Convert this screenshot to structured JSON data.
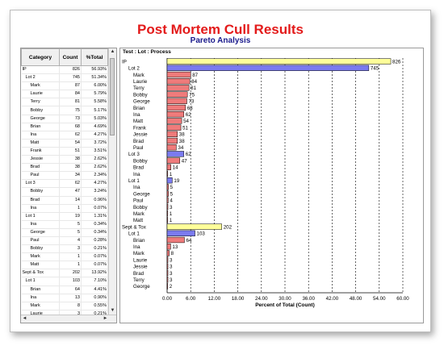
{
  "title": "Post Mortem Cull Results",
  "subtitle": "Pareto Analysis",
  "chart_header": "Test : Lot : Process",
  "table": {
    "headers": [
      "Category",
      "Count",
      "%Total"
    ],
    "rows": [
      {
        "category": "IP",
        "level": 0,
        "count": "826",
        "pct": "56.93%"
      },
      {
        "category": "Lot 2",
        "level": 1,
        "count": "745",
        "pct": "51.34%"
      },
      {
        "category": "Mark",
        "level": 2,
        "count": "87",
        "pct": "6.00%"
      },
      {
        "category": "Laurie",
        "level": 2,
        "count": "84",
        "pct": "5.79%"
      },
      {
        "category": "Terry",
        "level": 2,
        "count": "81",
        "pct": "5.58%"
      },
      {
        "category": "Bobby",
        "level": 2,
        "count": "75",
        "pct": "5.17%"
      },
      {
        "category": "George",
        "level": 2,
        "count": "73",
        "pct": "5.03%"
      },
      {
        "category": "Brian",
        "level": 2,
        "count": "68",
        "pct": "4.69%"
      },
      {
        "category": "Ina",
        "level": 2,
        "count": "62",
        "pct": "4.27%"
      },
      {
        "category": "Matt",
        "level": 2,
        "count": "54",
        "pct": "3.72%"
      },
      {
        "category": "Frank",
        "level": 2,
        "count": "51",
        "pct": "3.51%"
      },
      {
        "category": "Jessie",
        "level": 2,
        "count": "38",
        "pct": "2.62%"
      },
      {
        "category": "Brad",
        "level": 2,
        "count": "38",
        "pct": "2.62%"
      },
      {
        "category": "Paul",
        "level": 2,
        "count": "34",
        "pct": "2.34%"
      },
      {
        "category": "Lot 3",
        "level": 1,
        "count": "62",
        "pct": "4.27%"
      },
      {
        "category": "Bobby",
        "level": 2,
        "count": "47",
        "pct": "3.24%"
      },
      {
        "category": "Brad",
        "level": 2,
        "count": "14",
        "pct": "0.96%"
      },
      {
        "category": "Ina",
        "level": 2,
        "count": "1",
        "pct": "0.07%"
      },
      {
        "category": "Lot 1",
        "level": 1,
        "count": "19",
        "pct": "1.31%"
      },
      {
        "category": "Ina",
        "level": 2,
        "count": "5",
        "pct": "0.34%"
      },
      {
        "category": "George",
        "level": 2,
        "count": "5",
        "pct": "0.34%"
      },
      {
        "category": "Paul",
        "level": 2,
        "count": "4",
        "pct": "0.28%"
      },
      {
        "category": "Bobby",
        "level": 2,
        "count": "3",
        "pct": "0.21%"
      },
      {
        "category": "Mark",
        "level": 2,
        "count": "1",
        "pct": "0.07%"
      },
      {
        "category": "Matt",
        "level": 2,
        "count": "1",
        "pct": "0.07%"
      },
      {
        "category": "Sept & Tox",
        "level": 0,
        "count": "202",
        "pct": "13.92%"
      },
      {
        "category": "Lot 1",
        "level": 1,
        "count": "103",
        "pct": "7.10%"
      },
      {
        "category": "Brian",
        "level": 2,
        "count": "64",
        "pct": "4.41%"
      },
      {
        "category": "Ina",
        "level": 2,
        "count": "13",
        "pct": "0.90%"
      },
      {
        "category": "Mark",
        "level": 2,
        "count": "8",
        "pct": "0.55%"
      },
      {
        "category": "Laurie",
        "level": 2,
        "count": "3",
        "pct": "0.21%"
      }
    ]
  },
  "scroll_arrows": {
    "up": "▲",
    "down": "▼",
    "left": "◄",
    "right": "►"
  },
  "colors": {
    "level0": "#ffff99",
    "level1": "#7b7bef",
    "level2": "#ef7b7b",
    "title": "#e31a1a",
    "subtitle": "#1a1a8c"
  },
  "chart_data": {
    "type": "bar",
    "orientation": "horizontal",
    "title": "Post Mortem Cull Results",
    "subtitle": "Pareto Analysis",
    "header": "Test : Lot : Process",
    "xlabel": "Percent of Total (Count)",
    "xlim": [
      0,
      60
    ],
    "xticks": [
      "0.00",
      "6.00",
      "12.00",
      "18.00",
      "24.00",
      "30.00",
      "36.00",
      "42.00",
      "48.00",
      "54.00",
      "60.00"
    ],
    "grid": "vertical dashed",
    "bars": [
      {
        "label": "IP",
        "level": 0,
        "count": 826,
        "pct": 56.93
      },
      {
        "label": "Lot 2",
        "level": 1,
        "count": 745,
        "pct": 51.34
      },
      {
        "label": "Mark",
        "level": 2,
        "count": 87,
        "pct": 6.0
      },
      {
        "label": "Laurie",
        "level": 2,
        "count": 84,
        "pct": 5.79
      },
      {
        "label": "Terry",
        "level": 2,
        "count": 81,
        "pct": 5.58
      },
      {
        "label": "Bobby",
        "level": 2,
        "count": 75,
        "pct": 5.17
      },
      {
        "label": "George",
        "level": 2,
        "count": 73,
        "pct": 5.03
      },
      {
        "label": "Brian",
        "level": 2,
        "count": 68,
        "pct": 4.69
      },
      {
        "label": "Ina",
        "level": 2,
        "count": 62,
        "pct": 4.27
      },
      {
        "label": "Matt",
        "level": 2,
        "count": 54,
        "pct": 3.72
      },
      {
        "label": "Frank",
        "level": 2,
        "count": 51,
        "pct": 3.51
      },
      {
        "label": "Jessie",
        "level": 2,
        "count": 38,
        "pct": 2.62
      },
      {
        "label": "Brad",
        "level": 2,
        "count": 38,
        "pct": 2.62
      },
      {
        "label": "Paul",
        "level": 2,
        "count": 34,
        "pct": 2.34
      },
      {
        "label": "Lot 3",
        "level": 1,
        "count": 62,
        "pct": 4.27
      },
      {
        "label": "Bobby",
        "level": 2,
        "count": 47,
        "pct": 3.24
      },
      {
        "label": "Brad",
        "level": 2,
        "count": 14,
        "pct": 0.96
      },
      {
        "label": "Ina",
        "level": 2,
        "count": 1,
        "pct": 0.07
      },
      {
        "label": "Lot 1",
        "level": 1,
        "count": 19,
        "pct": 1.31
      },
      {
        "label": "Ina",
        "level": 2,
        "count": 5,
        "pct": 0.34
      },
      {
        "label": "George",
        "level": 2,
        "count": 5,
        "pct": 0.34
      },
      {
        "label": "Paul",
        "level": 2,
        "count": 4,
        "pct": 0.28
      },
      {
        "label": "Bobby",
        "level": 2,
        "count": 3,
        "pct": 0.21
      },
      {
        "label": "Mark",
        "level": 2,
        "count": 1,
        "pct": 0.07
      },
      {
        "label": "Matt",
        "level": 2,
        "count": 1,
        "pct": 0.07
      },
      {
        "label": "Sept & Tox",
        "level": 0,
        "count": 202,
        "pct": 13.92
      },
      {
        "label": "Lot 1",
        "level": 1,
        "count": 103,
        "pct": 7.1
      },
      {
        "label": "Brian",
        "level": 2,
        "count": 64,
        "pct": 4.41
      },
      {
        "label": "Ina",
        "level": 2,
        "count": 13,
        "pct": 0.9
      },
      {
        "label": "Mark",
        "level": 2,
        "count": 8,
        "pct": 0.55
      },
      {
        "label": "Laurie",
        "level": 2,
        "count": 3,
        "pct": 0.21
      },
      {
        "label": "Jessie",
        "level": 2,
        "count": 3,
        "pct": 0.21
      },
      {
        "label": "Brad",
        "level": 2,
        "count": 3,
        "pct": 0.21
      },
      {
        "label": "Terry",
        "level": 2,
        "count": 3,
        "pct": 0.21
      },
      {
        "label": "George",
        "level": 2,
        "count": 2,
        "pct": 0.14
      }
    ]
  }
}
